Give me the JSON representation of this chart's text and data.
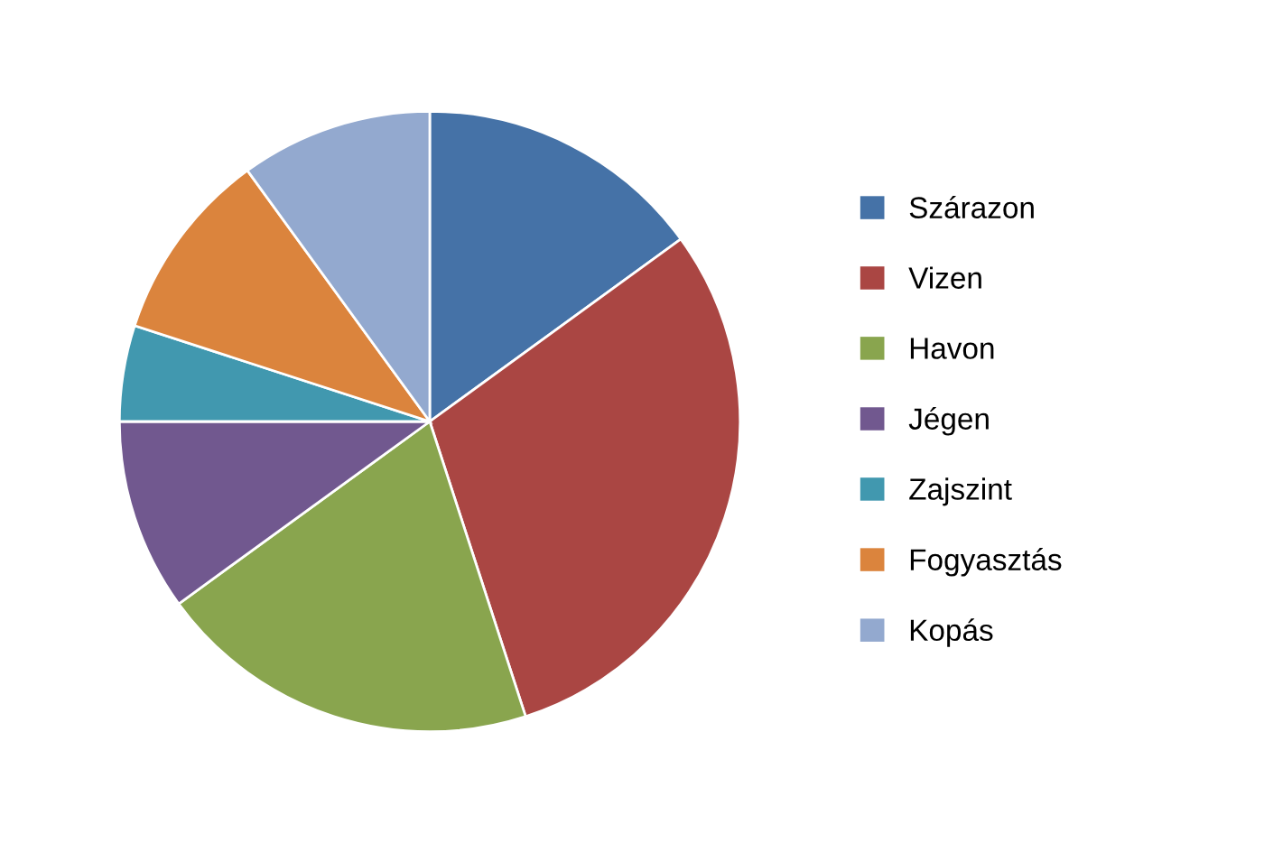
{
  "chart_data": {
    "type": "pie",
    "categories": [
      "Szárazon",
      "Vizen",
      "Havon",
      "Jégen",
      "Zajszint",
      "Fogyasztás",
      "Kopás"
    ],
    "values": [
      15,
      30,
      20,
      10,
      5,
      10,
      10
    ],
    "colors": [
      "#4572a7",
      "#aa4643",
      "#89a54e",
      "#71588f",
      "#4198af",
      "#db843d",
      "#93a9cf"
    ],
    "legend": "right"
  }
}
